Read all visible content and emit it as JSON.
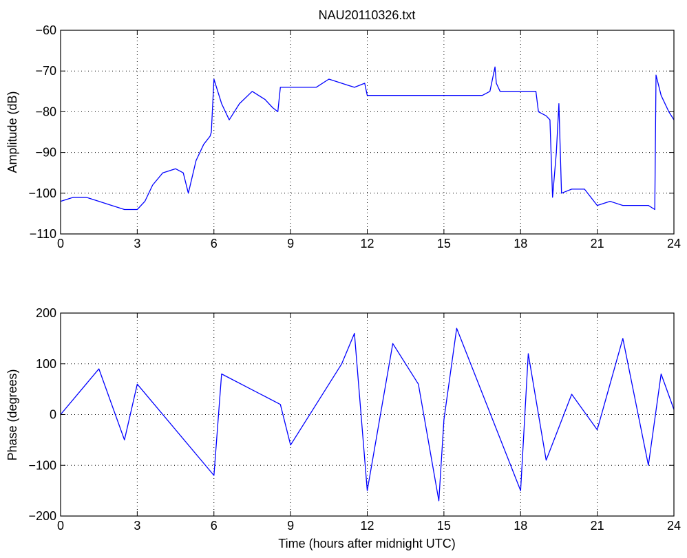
{
  "figure": {
    "background": "#ffffff",
    "line_color": "#0000ff",
    "axes_color": "#000000",
    "grid_color": "#000000"
  },
  "chart_data": [
    {
      "type": "line",
      "title": "NAU20110326.txt",
      "xlabel": "",
      "ylabel": "Amplitude (dB)",
      "xlim": [
        0,
        24
      ],
      "ylim": [
        -110,
        -60
      ],
      "xticks": [
        0,
        3,
        6,
        9,
        12,
        15,
        18,
        21,
        24
      ],
      "yticks": [
        -110,
        -100,
        -90,
        -80,
        -70,
        -60
      ],
      "xtick_labels": [
        "0",
        "3",
        "6",
        "9",
        "12",
        "15",
        "18",
        "21",
        "24"
      ],
      "ytick_labels": [
        "−110",
        "−100",
        "−90",
        "−80",
        "−70",
        "−60"
      ],
      "grid": true,
      "series": [
        {
          "color": "#0000ff",
          "x": [
            0,
            0.5,
            1,
            1.5,
            2,
            2.5,
            3,
            3.3,
            3.6,
            4,
            4.5,
            4.8,
            5,
            5.3,
            5.6,
            5.85,
            5.9,
            6.0,
            6.3,
            6.6,
            7,
            7.5,
            8,
            8.3,
            8.5,
            8.6,
            9,
            9.5,
            10,
            10.5,
            11,
            11.5,
            11.9,
            12,
            12.5,
            13,
            13.5,
            14,
            15,
            15.5,
            16,
            16.5,
            16.8,
            17.0,
            17.05,
            17.2,
            17.5,
            18,
            18.3,
            18.6,
            18.7,
            19.0,
            19.15,
            19.25,
            19.4,
            19.5,
            19.6,
            20,
            20.5,
            21,
            21.5,
            22,
            22.5,
            23,
            23.25,
            23.3,
            23.5,
            23.8,
            24
          ],
          "y": [
            -102,
            -101,
            -101,
            -102,
            -103,
            -104,
            -104,
            -102,
            -98,
            -95,
            -94,
            -95,
            -100,
            -92,
            -88,
            -86,
            -85,
            -72,
            -78,
            -82,
            -78,
            -75,
            -77,
            -79,
            -80,
            -74,
            -74,
            -74,
            -74,
            -72,
            -73,
            -74,
            -73,
            -76,
            -76,
            -76,
            -76,
            -76,
            -76,
            -76,
            -76,
            -76,
            -75,
            -69,
            -73,
            -75,
            -75,
            -75,
            -75,
            -75,
            -80,
            -81,
            -82,
            -101,
            -90,
            -78,
            -100,
            -99,
            -99,
            -103,
            -102,
            -103,
            -103,
            -103,
            -104,
            -71,
            -76,
            -80,
            -82
          ]
        }
      ]
    },
    {
      "type": "line",
      "title": "",
      "xlabel": "Time (hours after midnight UTC)",
      "ylabel": "Phase (degrees)",
      "xlim": [
        0,
        24
      ],
      "ylim": [
        -200,
        200
      ],
      "xticks": [
        0,
        3,
        6,
        9,
        12,
        15,
        18,
        21,
        24
      ],
      "yticks": [
        -200,
        -100,
        0,
        100,
        200
      ],
      "xtick_labels": [
        "0",
        "3",
        "6",
        "9",
        "12",
        "15",
        "18",
        "21",
        "24"
      ],
      "ytick_labels": [
        "−200",
        "−100",
        "0",
        "100",
        "200"
      ],
      "grid": true,
      "series": [
        {
          "color": "#0000ff",
          "x": [
            0,
            1.5,
            2.5,
            3.0,
            6.0,
            6.3,
            8.6,
            9.0,
            11.0,
            11.5,
            12.0,
            13.0,
            14.0,
            14.8,
            15.0,
            15.5,
            18.0,
            18.3,
            19.0,
            20.0,
            21.0,
            22.0,
            23.0,
            23.5,
            24.0
          ],
          "y": [
            0,
            90,
            -50,
            60,
            -120,
            80,
            20,
            -60,
            100,
            160,
            -150,
            140,
            60,
            -170,
            -10,
            170,
            -150,
            120,
            -90,
            40,
            -30,
            150,
            -100,
            80,
            10
          ]
        }
      ]
    }
  ]
}
